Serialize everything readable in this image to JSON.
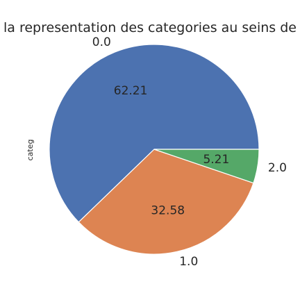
{
  "chart_data": {
    "type": "pie",
    "title": "la representation des categories au seins de",
    "ylabel": "categ",
    "slices": [
      {
        "label": "0.0",
        "value": 62.21,
        "value_label": "62.21",
        "color": "#4c72b0"
      },
      {
        "label": "1.0",
        "value": 32.58,
        "value_label": "32.58",
        "color": "#dd8452"
      },
      {
        "label": "2.0",
        "value": 5.21,
        "value_label": "5.21",
        "color": "#55a868"
      }
    ],
    "start_angle_deg": 0,
    "direction": "counterclockwise",
    "slice_edge_color": "#ffffff"
  }
}
